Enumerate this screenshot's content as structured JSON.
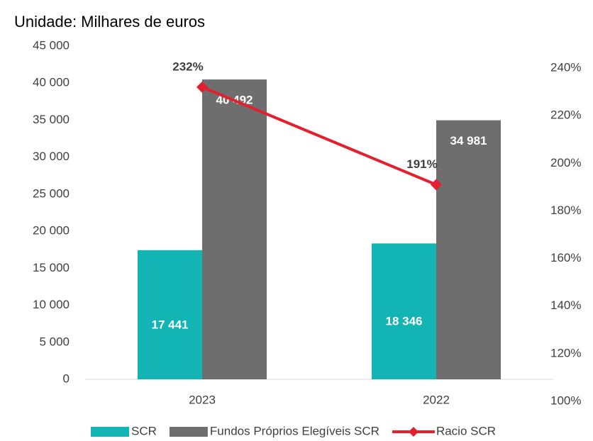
{
  "chart_data": {
    "type": "bar",
    "title": "Unidade: Milhares de euros",
    "categories": [
      "2023",
      "2022"
    ],
    "series": [
      {
        "name": "SCR",
        "color": "#12b4b4",
        "type": "bar",
        "values": [
          17441,
          18346
        ],
        "value_labels": [
          "17 441",
          "18 346"
        ]
      },
      {
        "name": "Fundos Próprios Elegíveis SCR",
        "color": "#6e6e6e",
        "type": "bar",
        "values": [
          40492,
          34981
        ],
        "value_labels": [
          "40 492",
          "34 981"
        ]
      },
      {
        "name": "Racio SCR",
        "color": "#e2202e",
        "type": "line",
        "axis": "y2",
        "values": [
          232,
          191
        ],
        "value_labels": [
          "232%",
          "191%"
        ]
      }
    ],
    "ylim": [
      0,
      45000
    ],
    "yticks": [
      0,
      {
        "value": 5000,
        "label": "5 000"
      },
      {
        "value": 10000,
        "label": "10 000"
      },
      {
        "value": 15000,
        "label": "15 000"
      },
      {
        "value": 20000,
        "label": "20 000"
      },
      {
        "value": 25000,
        "label": "25 000"
      },
      {
        "value": 30000,
        "label": "30 000"
      },
      {
        "value": 35000,
        "label": "35 000"
      },
      {
        "value": 40000,
        "label": "40 000"
      },
      {
        "value": 45000,
        "label": "45 000"
      }
    ],
    "y2lim": [
      100,
      240
    ],
    "y2ticks": [
      {
        "value": 100,
        "label": "100%"
      },
      {
        "value": 120,
        "label": "120%"
      },
      {
        "value": 140,
        "label": "140%"
      },
      {
        "value": 160,
        "label": "160%"
      },
      {
        "value": 180,
        "label": "180%"
      },
      {
        "value": 200,
        "label": "200%"
      },
      {
        "value": 220,
        "label": "220%"
      },
      {
        "value": 240,
        "label": "240%"
      }
    ],
    "legend": "bottom"
  }
}
